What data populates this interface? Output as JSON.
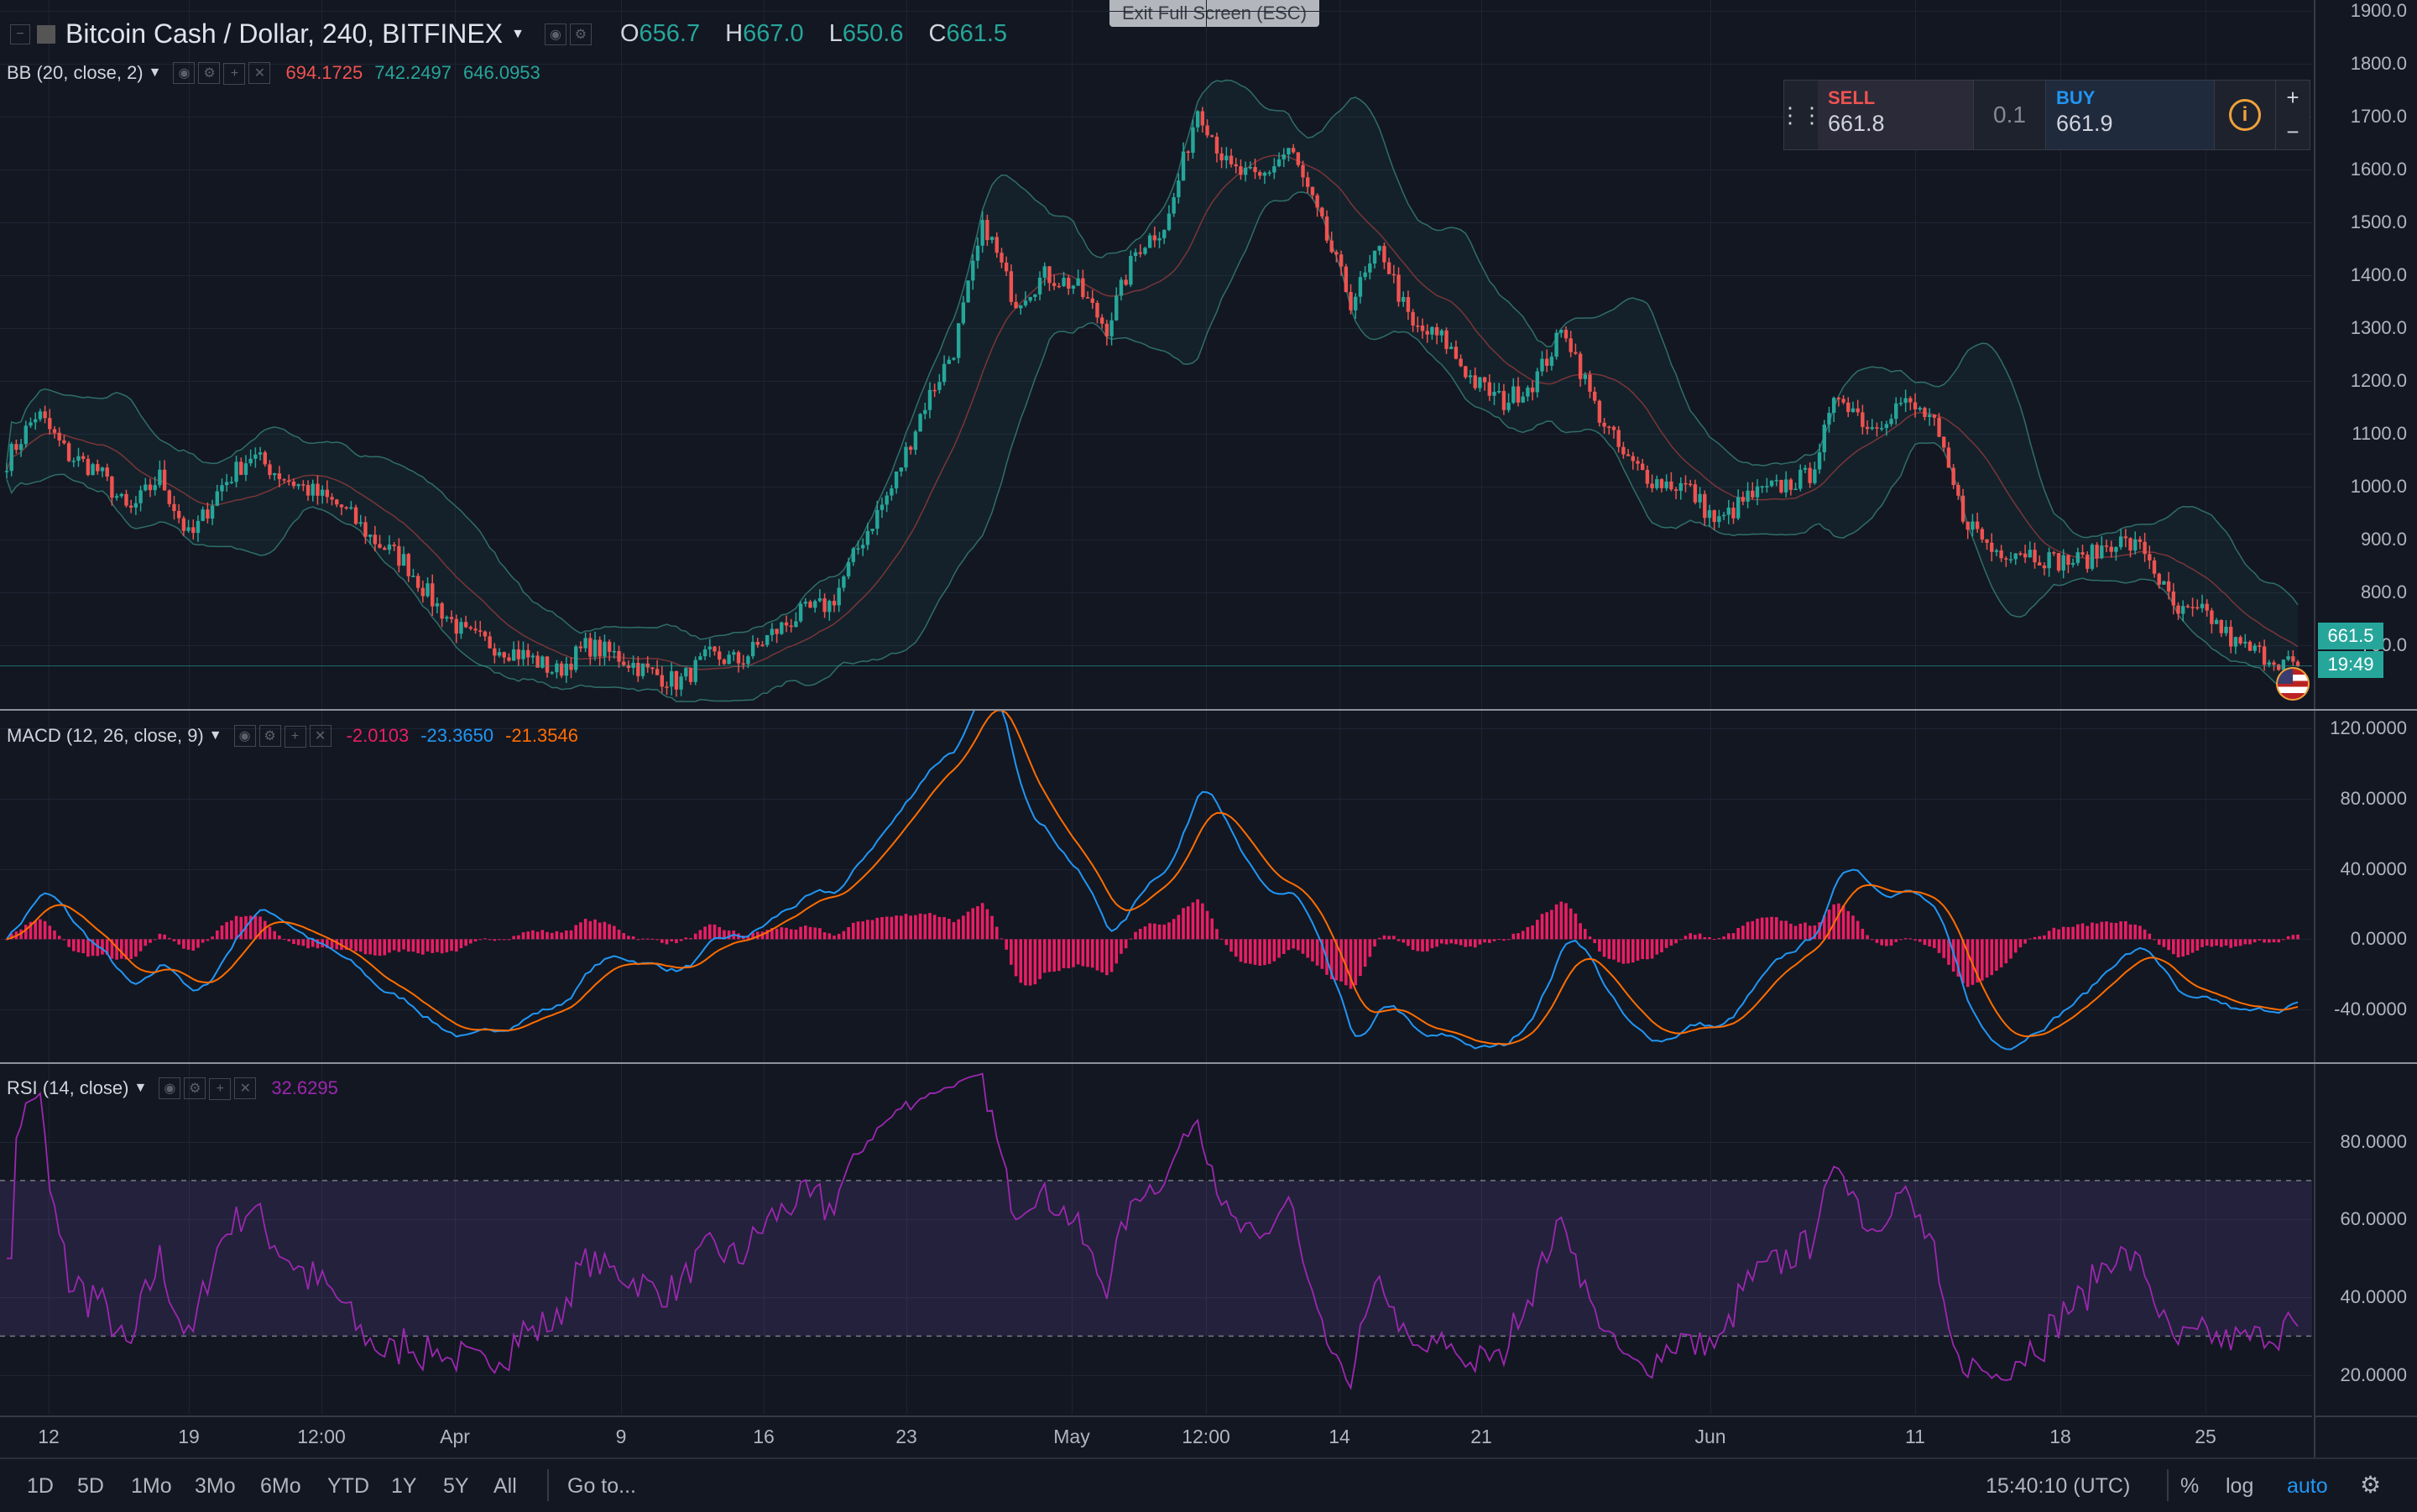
{
  "window": {
    "exit_fullscreen": "Exit Full Screen (ESC)"
  },
  "symbol": {
    "title": "Bitcoin Cash / Dollar, 240, BITFINEX",
    "open_label": "O",
    "open": "656.7",
    "high_label": "H",
    "high": "667.0",
    "low_label": "L",
    "low": "650.6",
    "close_label": "C",
    "close": "661.5"
  },
  "bb": {
    "label": "BB (20, close, 2)",
    "v1": "694.1725",
    "v2": "742.2497",
    "v3": "646.0953"
  },
  "macd": {
    "label": "MACD (12, 26, close, 9)",
    "v1": "-2.0103",
    "v2": "-23.3650",
    "v3": "-21.3546"
  },
  "rsi": {
    "label": "RSI (14, close)",
    "v1": "32.6295"
  },
  "trade": {
    "sell_label": "SELL",
    "sell_price": "661.8",
    "qty": "0.1",
    "buy_label": "BUY",
    "buy_price": "661.9",
    "info": "i",
    "plus": "+",
    "minus": "−",
    "drag": "⋮⋮"
  },
  "price_axis": [
    "1900.0",
    "1800.0",
    "1700.0",
    "1600.0",
    "1500.0",
    "1400.0",
    "1300.0",
    "1200.0",
    "1100.0",
    "1000.0",
    "900.0",
    "800.0",
    "700.0"
  ],
  "macd_axis": [
    "120.0000",
    "80.0000",
    "40.0000",
    "0.0000",
    "-40.0000"
  ],
  "rsi_axis": [
    "80.0000",
    "60.0000",
    "40.0000",
    "20.0000"
  ],
  "last_price_tag": "661.5",
  "countdown_tag": "19:49",
  "time_axis": [
    "12",
    "19",
    "12:00",
    "Apr",
    "9",
    "16",
    "23",
    "May",
    "12:00",
    "14",
    "21",
    "Jun",
    "11",
    "18",
    "25"
  ],
  "ranges": [
    "1D",
    "5D",
    "1Mo",
    "3Mo",
    "6Mo",
    "YTD",
    "1Y",
    "5Y",
    "All"
  ],
  "goto_label": "Go to...",
  "clock": "15:40:10 (UTC)",
  "scale_opts": {
    "percent": "%",
    "log": "log",
    "auto": "auto"
  },
  "colors": {
    "up": "#26a69a",
    "down": "#ef5350",
    "bg": "#131722",
    "macd_line": "#2196f3",
    "signal_line": "#ff6d00",
    "hist": "#e91e63",
    "rsi": "#9c27b0",
    "bb_fill": "#26a69a"
  },
  "icons": {
    "settings": "gear-icon",
    "hide": "eye-icon",
    "add": "plus-icon",
    "remove": "close-icon"
  },
  "chart_data": [
    {
      "type": "candlestick",
      "title": "Bitcoin Cash / Dollar, 240, BITFINEX",
      "ylim": [
        580,
        1920
      ],
      "x_ticks": [
        "12",
        "19",
        "12:00",
        "Apr",
        "9",
        "16",
        "23",
        "May",
        "12:00",
        "14",
        "21",
        "Jun",
        "11",
        "18",
        "25"
      ],
      "close_path": [
        1050,
        1140,
        1060,
        1030,
        950,
        1020,
        900,
        1000,
        1060,
        1020,
        990,
        960,
        900,
        860,
        780,
        720,
        700,
        680,
        650,
        700,
        680,
        650,
        630,
        680,
        670,
        720,
        760,
        780,
        900,
        1000,
        1150,
        1260,
        1500,
        1350,
        1400,
        1380,
        1300,
        1450,
        1500,
        1720,
        1600,
        1580,
        1640,
        1500,
        1350,
        1450,
        1300,
        1280,
        1200,
        1160,
        1200,
        1300,
        1150,
        1050,
        1010,
        1000,
        930,
        980,
        1000,
        1020,
        1180,
        1110,
        1160,
        1130,
        950,
        880,
        880,
        860,
        860,
        900,
        880,
        760,
        760,
        700,
        680,
        661.5
      ]
    },
    {
      "type": "line",
      "title": "MACD (12, 26, close, 9)",
      "ylim": [
        -70,
        130
      ]
    },
    {
      "type": "line",
      "title": "RSI (14, close)",
      "ylim": [
        10,
        100
      ],
      "band": [
        30,
        70
      ]
    }
  ]
}
